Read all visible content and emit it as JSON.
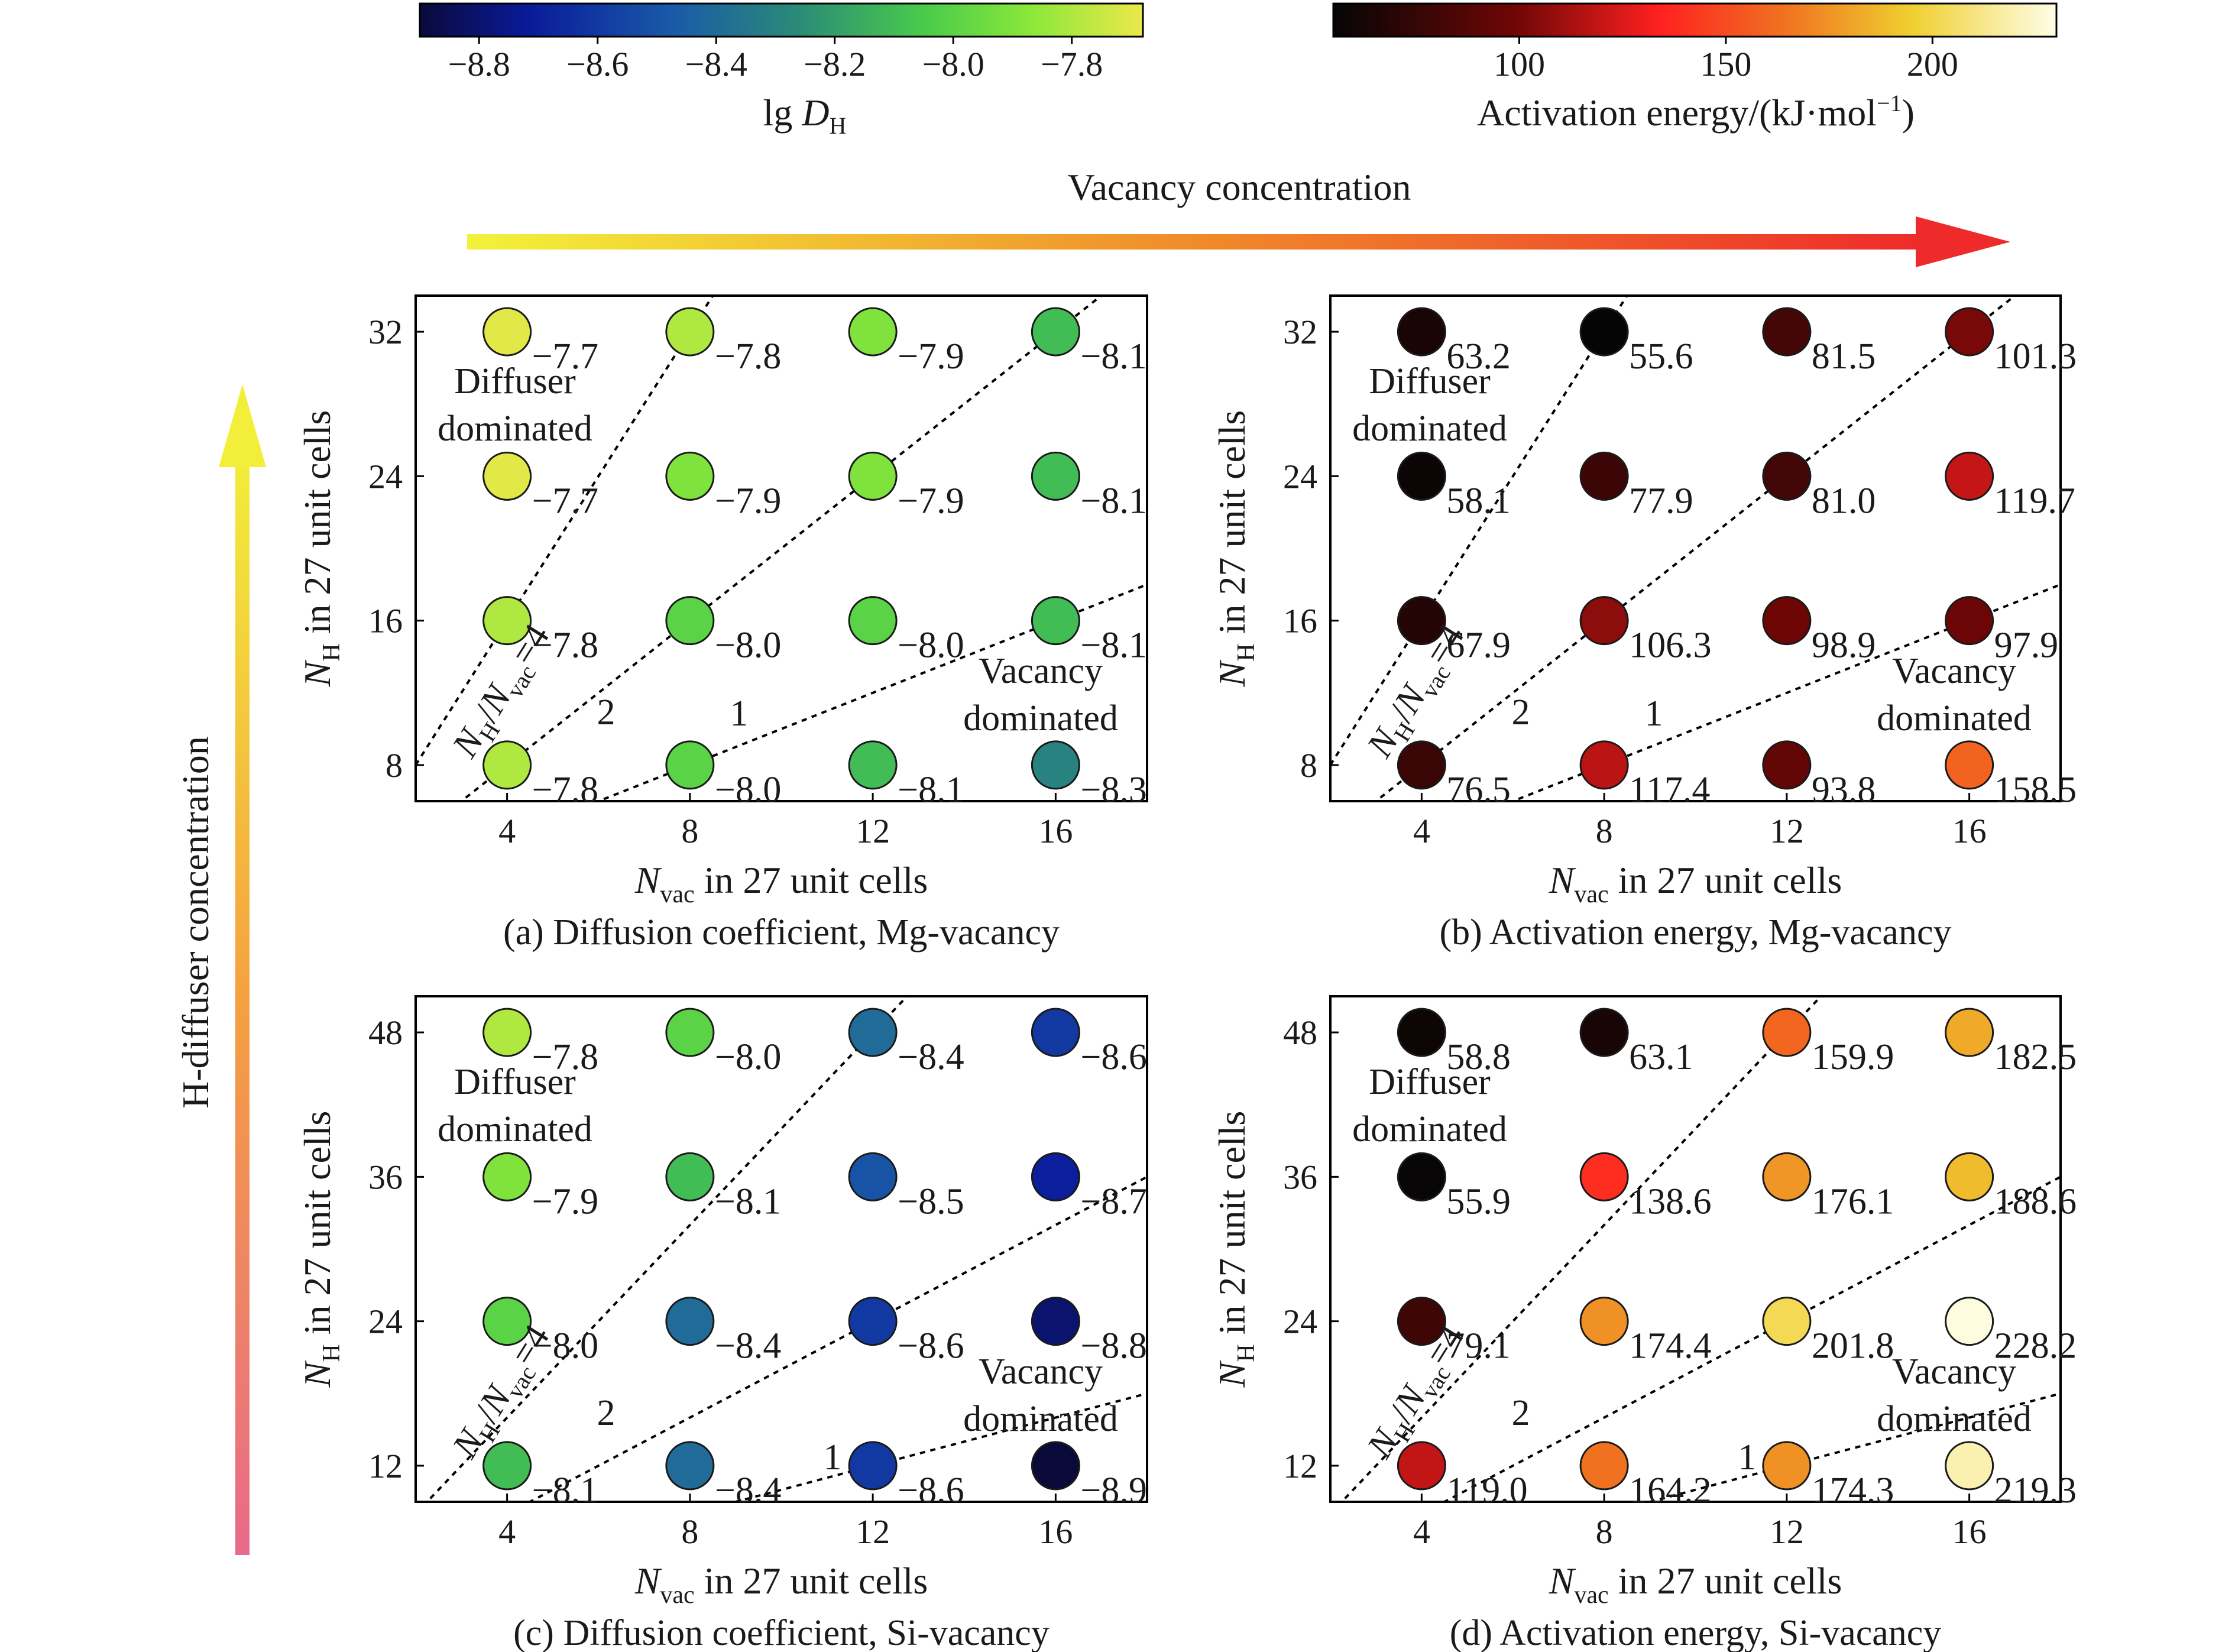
{
  "colorbar_d": {
    "ticks": [
      "−8.8",
      "−8.6",
      "−8.4",
      "−8.2",
      "−8.0",
      "−7.8"
    ],
    "label_main": "lg ",
    "label_var": "D",
    "label_sub": "H",
    "min": -8.9,
    "max": -7.68
  },
  "colorbar_e": {
    "ticks": [
      "100",
      "150",
      "200"
    ],
    "label": "Activation energy/(kJ·mol",
    "label_sup": "−1",
    "label_end": ")",
    "min": 55,
    "max": 230
  },
  "arrow_h_label": "Vacancy concentration",
  "arrow_v_label": "H-diffuser concentration",
  "axis_labels": {
    "x_var": "N",
    "x_sub": "vac",
    "x_rest": " in 27 unit cells",
    "y_var": "N",
    "y_sub": "H",
    "y_rest": " in 27 unit cells"
  },
  "annotations": {
    "diffuser_1": "Diffuser",
    "diffuser_2": "dominated",
    "vacancy_1": "Vacancy",
    "vacancy_2": "dominated",
    "ratio_prefix_var1": "N",
    "ratio_prefix_sub1": "H",
    "ratio_slash": "/",
    "ratio_var2": "N",
    "ratio_sub2": "vac",
    "ratio_value": "=4",
    "line_2": "2",
    "line_1": "1"
  },
  "chart_data": [
    {
      "id": "a",
      "type": "scatter",
      "metric": "diffusion",
      "caption": "(a) Diffusion coefficient, Mg-vacancy",
      "x": [
        4,
        8,
        12,
        16
      ],
      "y": [
        8,
        16,
        24,
        32
      ],
      "xticks": [
        "4",
        "8",
        "12",
        "16"
      ],
      "yticks": [
        "8",
        "16",
        "24",
        "32"
      ],
      "xlim": [
        2,
        18
      ],
      "ylim": [
        6,
        34
      ],
      "ratio_lines": [
        4,
        2,
        1
      ],
      "values": [
        [
          -7.8,
          -8.0,
          -8.1,
          -8.3
        ],
        [
          -7.8,
          -8.0,
          -8.0,
          -8.1
        ],
        [
          -7.7,
          -7.9,
          -7.9,
          -8.1
        ],
        [
          -7.7,
          -7.8,
          -7.9,
          -8.1
        ]
      ],
      "labels": [
        [
          "−7.8",
          "−8.0",
          "−8.1",
          "−8.3"
        ],
        [
          "−7.8",
          "−8.0",
          "−8.0",
          "−8.1"
        ],
        [
          "−7.7",
          "−7.9",
          "−7.9",
          "−8.1"
        ],
        [
          "−7.7",
          "−7.8",
          "−7.9",
          "−8.1"
        ]
      ]
    },
    {
      "id": "b",
      "type": "scatter",
      "metric": "energy",
      "caption": "(b) Activation energy, Mg-vacancy",
      "x": [
        4,
        8,
        12,
        16
      ],
      "y": [
        8,
        16,
        24,
        32
      ],
      "xticks": [
        "4",
        "8",
        "12",
        "16"
      ],
      "yticks": [
        "8",
        "16",
        "24",
        "32"
      ],
      "xlim": [
        2,
        18
      ],
      "ylim": [
        6,
        34
      ],
      "ratio_lines": [
        4,
        2,
        1
      ],
      "values": [
        [
          76.5,
          117.4,
          93.8,
          158.5
        ],
        [
          67.9,
          106.3,
          98.9,
          97.9
        ],
        [
          58.1,
          77.9,
          81.0,
          119.7
        ],
        [
          63.2,
          55.6,
          81.5,
          101.3
        ]
      ],
      "labels": [
        [
          "76.5",
          "117.4",
          "93.8",
          "158.5"
        ],
        [
          "67.9",
          "106.3",
          "98.9",
          "97.9"
        ],
        [
          "58.1",
          "77.9",
          "81.0",
          "119.7"
        ],
        [
          "63.2",
          "55.6",
          "81.5",
          "101.3"
        ]
      ]
    },
    {
      "id": "c",
      "type": "scatter",
      "metric": "diffusion",
      "caption": "(c) Diffusion coefficient, Si-vacancy",
      "x": [
        4,
        8,
        12,
        16
      ],
      "y": [
        12,
        24,
        36,
        48
      ],
      "xticks": [
        "4",
        "8",
        "12",
        "16"
      ],
      "yticks": [
        "12",
        "24",
        "36",
        "48"
      ],
      "xlim": [
        2,
        18
      ],
      "ylim": [
        9,
        51
      ],
      "ratio_lines": [
        4,
        2,
        1
      ],
      "values": [
        [
          -8.1,
          -8.4,
          -8.6,
          -8.9
        ],
        [
          -8.0,
          -8.4,
          -8.6,
          -8.8
        ],
        [
          -7.9,
          -8.1,
          -8.5,
          -8.7
        ],
        [
          -7.8,
          -8.0,
          -8.4,
          -8.6
        ]
      ],
      "labels": [
        [
          "−8.1",
          "−8.4",
          "−8.6",
          "−8.9"
        ],
        [
          "−8.0",
          "−8.4",
          "−8.6",
          "−8.8"
        ],
        [
          "−7.9",
          "−8.1",
          "−8.5",
          "−8.7"
        ],
        [
          "−7.8",
          "−8.0",
          "−8.4",
          "−8.6"
        ]
      ]
    },
    {
      "id": "d",
      "type": "scatter",
      "metric": "energy",
      "caption": "(d) Activation energy, Si-vacancy",
      "x": [
        4,
        8,
        12,
        16
      ],
      "y": [
        12,
        24,
        36,
        48
      ],
      "xticks": [
        "4",
        "8",
        "12",
        "16"
      ],
      "yticks": [
        "12",
        "24",
        "36",
        "48"
      ],
      "xlim": [
        2,
        18
      ],
      "ylim": [
        9,
        51
      ],
      "ratio_lines": [
        4,
        2,
        1
      ],
      "values": [
        [
          119.0,
          164.2,
          174.3,
          219.3
        ],
        [
          79.1,
          174.4,
          201.8,
          228.2
        ],
        [
          55.9,
          138.6,
          176.1,
          188.6
        ],
        [
          58.8,
          63.1,
          159.9,
          182.5
        ]
      ],
      "labels": [
        [
          "119.0",
          "164.2",
          "174.3",
          "219.3"
        ],
        [
          "79.1",
          "174.4",
          "201.8",
          "228.2"
        ],
        [
          "55.9",
          "138.6",
          "176.1",
          "188.6"
        ],
        [
          "58.8",
          "63.1",
          "159.9",
          "182.5"
        ]
      ]
    }
  ]
}
